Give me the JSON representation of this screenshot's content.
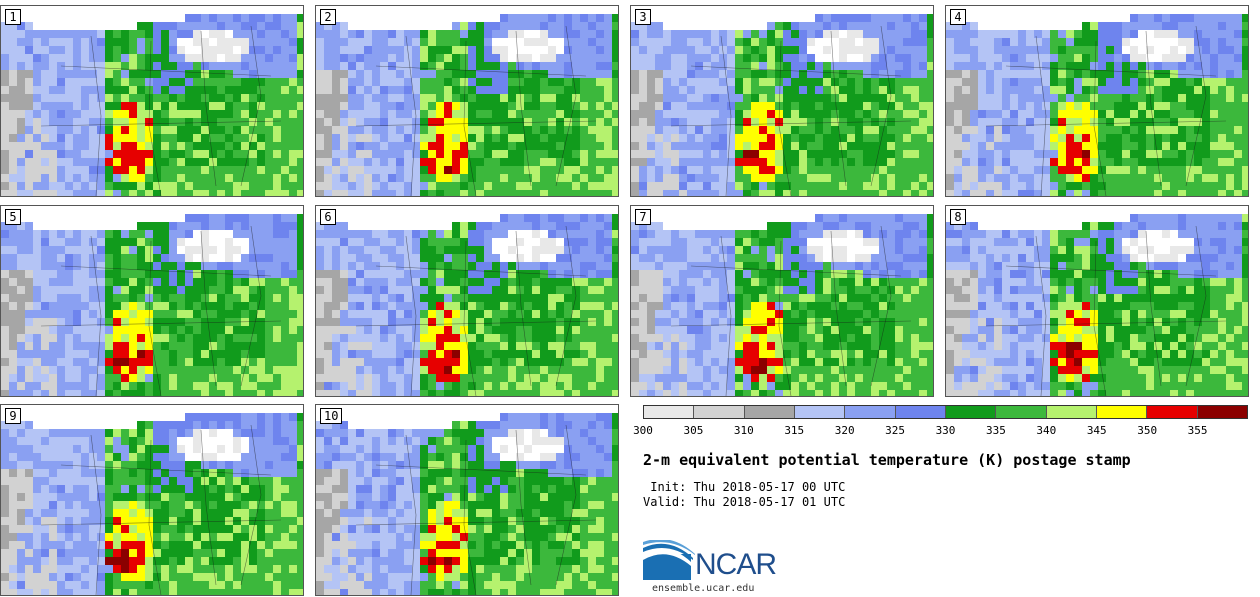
{
  "panels": [
    {
      "label": "1",
      "seed": 11
    },
    {
      "label": "2",
      "seed": 23
    },
    {
      "label": "3",
      "seed": 37
    },
    {
      "label": "4",
      "seed": 41
    },
    {
      "label": "5",
      "seed": 53
    },
    {
      "label": "6",
      "seed": 67
    },
    {
      "label": "7",
      "seed": 71
    },
    {
      "label": "8",
      "seed": 83
    },
    {
      "label": "9",
      "seed": 97
    },
    {
      "label": "10",
      "seed": 101
    }
  ],
  "colorbar": {
    "colors": [
      "#e8e8e8",
      "#d2d2d2",
      "#a6a6a6",
      "#b4c4f5",
      "#8aa0f2",
      "#6e84ee",
      "#119b1c",
      "#3cb83c",
      "#b5f26e",
      "#ffff00",
      "#e60000",
      "#8b0000"
    ],
    "ticks": [
      "300",
      "305",
      "310",
      "315",
      "320",
      "325",
      "330",
      "335",
      "340",
      "345",
      "350",
      "355"
    ]
  },
  "title": "2-m equivalent potential temperature (K) postage stamp",
  "init_line": " Init: Thu 2018-05-17 00 UTC",
  "valid_line": "Valid: Thu 2018-05-17 01 UTC",
  "logo_text": "NCAR",
  "site": "ensemble.ucar.edu"
}
